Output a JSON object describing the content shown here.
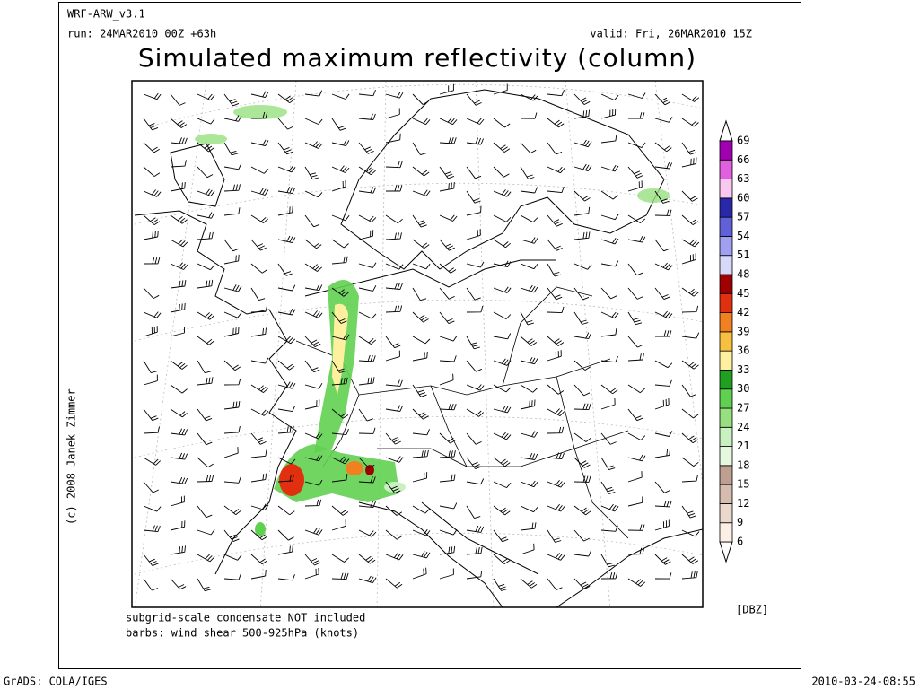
{
  "header": {
    "model": "WRF-ARW_v3.1",
    "run": "run: 24MAR2010 00Z +63h",
    "valid": "valid: Fri, 26MAR2010 15Z",
    "title": "Simulated maximum reflectivity (column)"
  },
  "colorbar": {
    "unit": "[DBZ]",
    "levels": [
      6,
      9,
      12,
      15,
      18,
      21,
      24,
      27,
      30,
      33,
      36,
      39,
      42,
      45,
      48,
      51,
      54,
      57,
      60,
      63,
      66,
      69
    ],
    "colors": [
      "#fcefe6",
      "#ead8cd",
      "#d5bcae",
      "#bf9f8f",
      "#e6f8e0",
      "#c8f0c0",
      "#96e080",
      "#60d050",
      "#20a020",
      "#fff0a0",
      "#f8c040",
      "#f08020",
      "#e03010",
      "#a00000",
      "#d8d8f8",
      "#a0a0f0",
      "#6060d8",
      "#2828a8",
      "#f8c8f0",
      "#e060e0",
      "#a000b0"
    ]
  },
  "notes": [
    "subgrid-scale condensate NOT included",
    "barbs: wind shear 500-925hPa (knots)"
  ],
  "copyright": "(c) 2008 Janek Zimmer",
  "footer": {
    "software": "GrADS: COLA/IGES",
    "timestamp": "2010-03-24-08:55"
  }
}
